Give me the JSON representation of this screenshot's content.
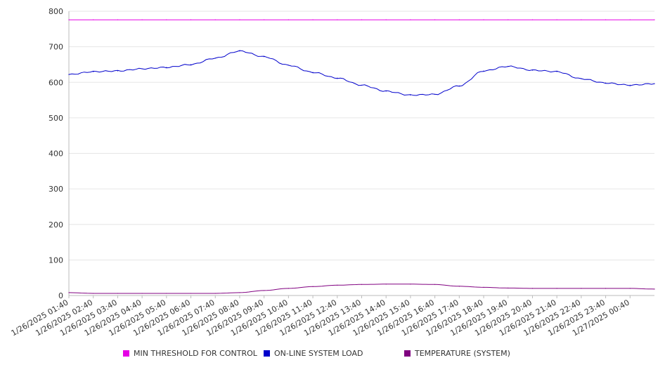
{
  "chart_data": {
    "type": "line",
    "y_ticks": [
      0,
      100,
      200,
      300,
      400,
      500,
      600,
      700,
      800
    ],
    "ylim": [
      0,
      800
    ],
    "x_tick_labels": [
      "1/26/2025 01:40",
      "1/26/2025 02:40",
      "1/26/2025 03:40",
      "1/26/2025 04:40",
      "1/26/2025 05:40",
      "1/26/2025 06:40",
      "1/26/2025 07:40",
      "1/26/2025 08:40",
      "1/26/2025 09:40",
      "1/26/2025 10:40",
      "1/26/2025 11:40",
      "1/26/2025 12:40",
      "1/26/2025 13:40",
      "1/26/2025 14:40",
      "1/26/2025 15:40",
      "1/26/2025 16:40",
      "1/26/2025 17:40",
      "1/26/2025 18:40",
      "1/26/2025 19:40",
      "1/26/2025 20:40",
      "1/26/2025 21:40",
      "1/26/2025 22:40",
      "1/26/2025 23:40",
      "1/27/2025 00:40"
    ],
    "x": [
      "1/26/2025 01:40",
      "1/26/2025 02:40",
      "1/26/2025 03:40",
      "1/26/2025 04:40",
      "1/26/2025 05:40",
      "1/26/2025 06:40",
      "1/26/2025 07:40",
      "1/26/2025 08:40",
      "1/26/2025 09:40",
      "1/26/2025 10:40",
      "1/26/2025 11:40",
      "1/26/2025 12:40",
      "1/26/2025 13:40",
      "1/26/2025 14:40",
      "1/26/2025 15:40",
      "1/26/2025 16:40",
      "1/26/2025 17:40",
      "1/26/2025 18:40",
      "1/26/2025 19:40",
      "1/26/2025 20:40",
      "1/26/2025 21:40",
      "1/26/2025 22:40",
      "1/26/2025 23:40",
      "1/27/2025 00:40",
      "1/27/2025 01:40"
    ],
    "grid": true,
    "legend_position": "bottom",
    "series": [
      {
        "name": "MIN THRESHOLD FOR CONTROL",
        "color": "#e600e6",
        "values": [
          776,
          776,
          776,
          776,
          776,
          776,
          776,
          776,
          776,
          776,
          776,
          776,
          776,
          776,
          776,
          776,
          776,
          776,
          776,
          776,
          776,
          776,
          776,
          776,
          776
        ]
      },
      {
        "name": "ON-LINE SYSTEM LOAD",
        "color": "#0000cc",
        "values": [
          622,
          630,
          632,
          638,
          642,
          650,
          668,
          688,
          672,
          648,
          628,
          612,
          592,
          575,
          564,
          566,
          590,
          632,
          645,
          634,
          630,
          610,
          598,
          592,
          596
        ]
      },
      {
        "name": "TEMPERATURE (SYSTEM)",
        "color": "#800080",
        "values": [
          8,
          6,
          6,
          6,
          6,
          6,
          6,
          8,
          14,
          20,
          25,
          29,
          31,
          32,
          32,
          31,
          26,
          23,
          21,
          20,
          20,
          20,
          20,
          20,
          18
        ]
      }
    ]
  }
}
